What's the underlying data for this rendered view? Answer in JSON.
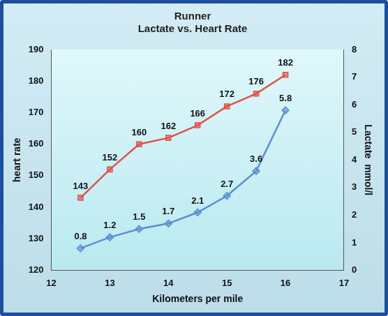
{
  "chart_data": {
    "type": "line",
    "title": "Runner",
    "subtitle": "Lactate vs. Heart Rate",
    "xlabel": "Kilometers per mile",
    "ylabel": "heart rate",
    "y2label": "Lactate  mmol/l",
    "x": [
      12.5,
      13,
      13.5,
      14,
      14.5,
      15,
      15.5,
      16
    ],
    "series": [
      {
        "color": "#e0524a",
        "marker": "square",
        "values": [
          143,
          152,
          160,
          162,
          166,
          172,
          176,
          182
        ]
      },
      {
        "color": "#5b8fd0",
        "marker": "diamond",
        "axis": "y2",
        "values": [
          0.8,
          1.2,
          1.5,
          1.7,
          2.1,
          2.7,
          3.6,
          5.8
        ]
      }
    ],
    "xlim": [
      12,
      17
    ],
    "xticks": [
      12,
      13,
      14,
      15,
      16,
      17
    ],
    "ylim": [
      120,
      190
    ],
    "yticks": [
      120,
      130,
      140,
      150,
      160,
      170,
      180,
      190
    ],
    "y2lim": [
      0,
      8
    ],
    "y2ticks": [
      0,
      1,
      2,
      3,
      4,
      5,
      6,
      7,
      8
    ],
    "grid": false,
    "data_labels": true
  }
}
